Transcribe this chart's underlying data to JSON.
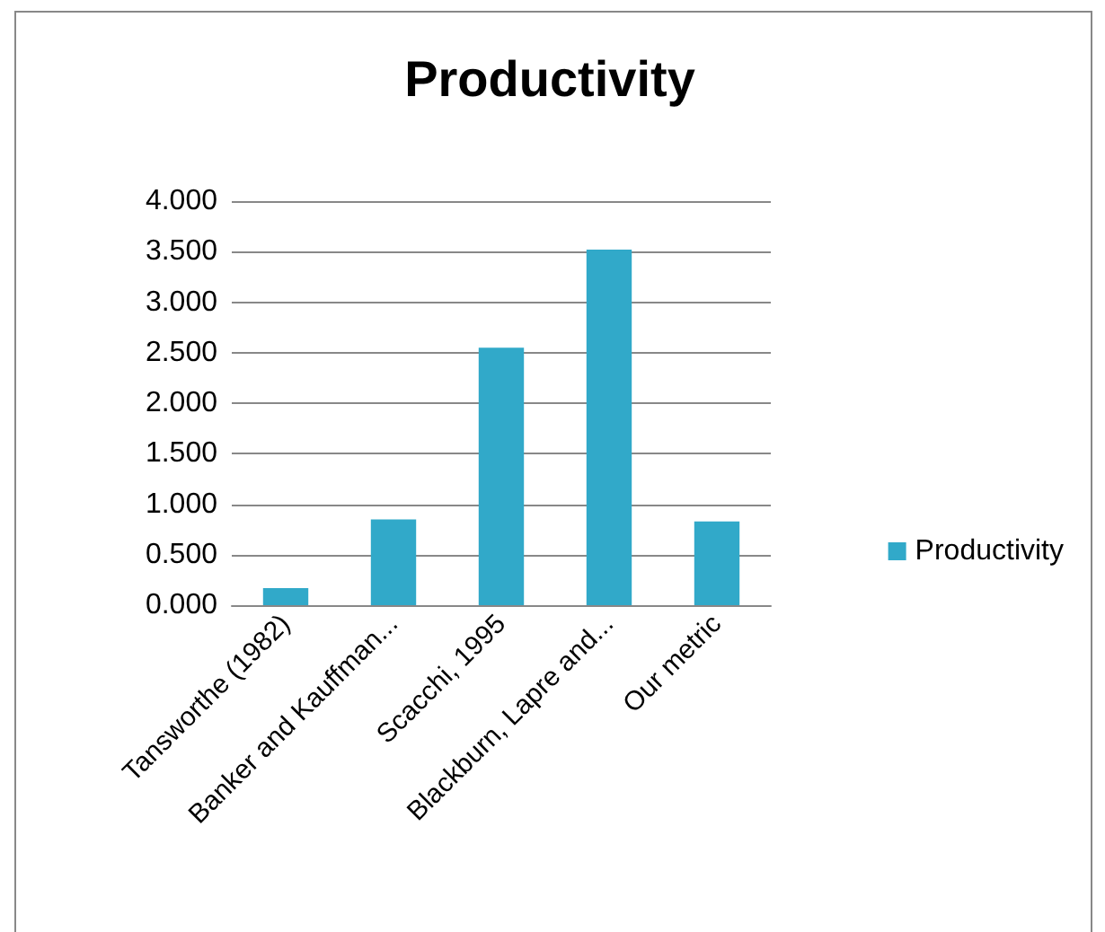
{
  "chart_data": {
    "type": "bar",
    "title": "Productivity",
    "categories": [
      "Tansworthe (1982)",
      "Banker and Kauffman...",
      "Scacchi, 1995",
      "Blackburn, Lapre and...",
      "Our metric"
    ],
    "series": [
      {
        "name": "Productivity",
        "color": "#31a9c9",
        "values": [
          0.17,
          0.85,
          2.55,
          3.52,
          0.83
        ]
      }
    ],
    "ylim": [
      0,
      4
    ],
    "yticks": [
      {
        "value": 0,
        "label": "0.000"
      },
      {
        "value": 0.5,
        "label": "0.500"
      },
      {
        "value": 1,
        "label": "1.000"
      },
      {
        "value": 1.5,
        "label": "1.500"
      },
      {
        "value": 2,
        "label": "2.000"
      },
      {
        "value": 2.5,
        "label": "2.500"
      },
      {
        "value": 3,
        "label": "3.000"
      },
      {
        "value": 3.5,
        "label": "3.500"
      },
      {
        "value": 4,
        "label": "4.000"
      }
    ],
    "grid": "y",
    "legend": "right"
  }
}
